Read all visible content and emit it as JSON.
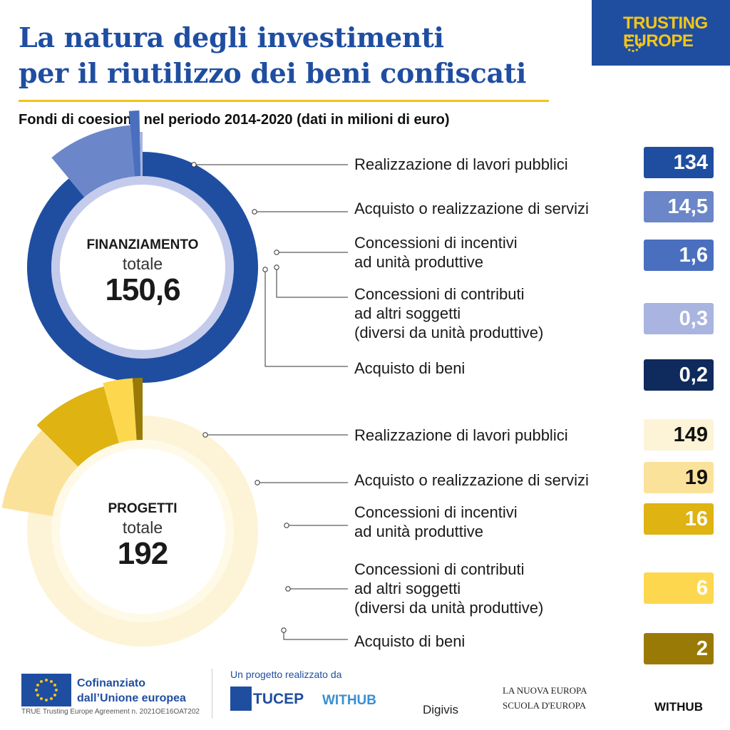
{
  "header": {
    "title_line1": "La natura degli investimenti",
    "title_line2": "per il riutilizzo dei beni confiscati",
    "subtitle": "Fondi di coesione nel periodo 2014-2020 (dati in milioni di euro)",
    "brand_line1": "TRUSTING",
    "brand_line2": "EUROPE"
  },
  "colors": {
    "title_blue": "#1f4ea1",
    "accent_yellow": "#f2c518"
  },
  "chart_data": [
    {
      "type": "pie",
      "center_name": "FINANZIAMENTO",
      "center_label": "totale",
      "total_label": "150,6",
      "total": 150.6,
      "categories": [
        "Realizzazione di lavori pubblici",
        "Acquisto o realizzazione di servizi",
        "Concessioni di incentivi ad unità produttive",
        "Concessioni di contributi ad altri soggetti (diversi da unità produttive)",
        "Acquisto di beni"
      ],
      "label_lines": [
        [
          "Realizzazione di lavori pubblici"
        ],
        [
          "Acquisto o realizzazione di servizi"
        ],
        [
          "Concessioni di incentivi",
          "ad unità produttive"
        ],
        [
          "Concessioni di contributi",
          "ad altri soggetti",
          "(diversi da unità produttive)"
        ],
        [
          "Acquisto di beni"
        ]
      ],
      "values": [
        134,
        14.5,
        1.6,
        0.3,
        0.2
      ],
      "value_labels": [
        "134",
        "14,5",
        "1,6",
        "0,3",
        "0,2"
      ],
      "colors": [
        "#1f4ea1",
        "#6b86c9",
        "#4a6fbe",
        "#a9b4e0",
        "#0f2a5c"
      ],
      "text_colors": [
        "#ffffff",
        "#ffffff",
        "#ffffff",
        "#ffffff",
        "#ffffff"
      ]
    },
    {
      "type": "pie",
      "center_name": "PROGETTI",
      "center_label": "totale",
      "total_label": "192",
      "total": 192,
      "categories": [
        "Realizzazione di lavori pubblici",
        "Acquisto o realizzazione di servizi",
        "Concessioni di incentivi ad unità produttive",
        "Concessioni di contributi ad altri soggetti (diversi da unità produttive)",
        "Acquisto di beni"
      ],
      "label_lines": [
        [
          "Realizzazione di lavori pubblici"
        ],
        [
          "Acquisto o realizzazione di servizi"
        ],
        [
          "Concessioni di incentivi",
          "ad unità produttive"
        ],
        [
          "Concessioni di contributi",
          "ad altri soggetti",
          "(diversi da unità produttive)"
        ],
        [
          "Acquisto di beni"
        ]
      ],
      "values": [
        149,
        19,
        16,
        6,
        2
      ],
      "value_labels": [
        "149",
        "19",
        "16",
        "6",
        "2"
      ],
      "colors": [
        "#fdf3d6",
        "#fbe29b",
        "#deb312",
        "#fdd84f",
        "#9a7a06"
      ],
      "text_colors": [
        "#111111",
        "#111111",
        "#ffffff",
        "#ffffff",
        "#ffffff"
      ]
    }
  ],
  "footer": {
    "eu_line1": "Cofinanziato",
    "eu_line2": "dall’Unione europea",
    "agreement": "TRUE Trusting Europe Agreement n. 2021OE16OAT202",
    "project_by": "Un progetto realizzato da",
    "logo1": "TUCEP",
    "logo2": "WITHUB",
    "logo3": "Digivis",
    "logo4_line1": "LA NUOVA EUROPA",
    "logo4_line2": "SCUOLA D'EUROPA",
    "logo5": "WITHUB"
  }
}
